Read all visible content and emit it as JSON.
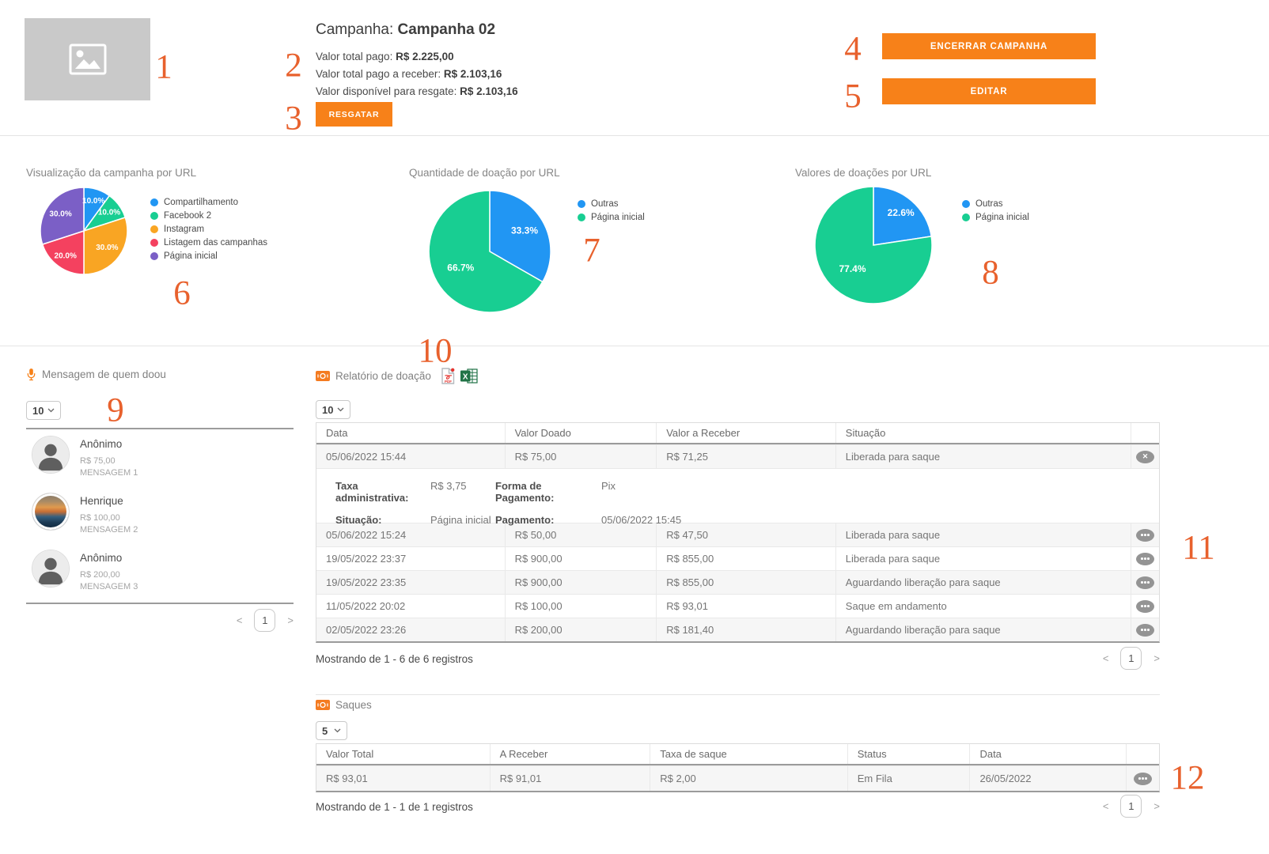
{
  "header": {
    "title_label": "Campanha:",
    "title_value": "Campanha 02",
    "info": [
      {
        "label": "Valor total pago: ",
        "value": "R$ 2.225,00"
      },
      {
        "label": "Valor total pago a receber: ",
        "value": "R$ 2.103,16"
      },
      {
        "label": "Valor disponível para resgate: ",
        "value": "R$ 2.103,16"
      }
    ],
    "buttons": {
      "resgatar": "RESGATAR",
      "encerrar": "ENCERRAR CAMPANHA",
      "editar": "EDITAR"
    }
  },
  "chart_data": [
    {
      "type": "pie",
      "title": "Visualização da campanha por URL",
      "labels": [
        "Compartilhamento",
        "Facebook 2",
        "Instagram",
        "Listagem das campanhas",
        "Página inicial"
      ],
      "values": [
        10,
        10,
        30,
        20,
        30
      ],
      "value_labels": [
        "10.0%",
        "10.0%",
        "30.0%",
        "20.0%",
        "30.0%"
      ],
      "colors": [
        "#2196F3",
        "#18CE92",
        "#F9A523",
        "#F4415F",
        "#7B5FC6"
      ],
      "legend_position": "right"
    },
    {
      "type": "pie",
      "title": "Quantidade de doação por URL",
      "labels": [
        "Outras",
        "Página inicial"
      ],
      "values": [
        33.3,
        66.7
      ],
      "value_labels": [
        "33.3%",
        "66.7%"
      ],
      "colors": [
        "#2196F3",
        "#18CE92"
      ],
      "legend_position": "right"
    },
    {
      "type": "pie",
      "title": "Valores de doações por URL",
      "labels": [
        "Outras",
        "Página inicial"
      ],
      "values": [
        22.6,
        77.4
      ],
      "value_labels": [
        "22.6%",
        "77.4%"
      ],
      "colors": [
        "#2196F3",
        "#18CE92"
      ],
      "legend_position": "right"
    }
  ],
  "messages": {
    "title": "Mensagem de quem doou",
    "page_size": "10",
    "items": [
      {
        "name": "Anônimo",
        "value": "R$ 75,00",
        "message": "MENSAGEM 1",
        "avatar": "anonymous"
      },
      {
        "name": "Henrique",
        "value": "R$ 100,00",
        "message": "MENSAGEM 2",
        "avatar": "photo"
      },
      {
        "name": "Anônimo",
        "value": "R$ 200,00",
        "message": "MENSAGEM 3",
        "avatar": "anonymous"
      }
    ],
    "pagination": {
      "prev": "<",
      "page": "1",
      "next": ">"
    }
  },
  "report": {
    "title": "Relatório de doação",
    "page_size": "10",
    "columns": [
      "Data",
      "Valor Doado",
      "Valor a Receber",
      "Situação"
    ],
    "rows": [
      {
        "cells": [
          "05/06/2022 15:44",
          "R$ 75,00",
          "R$ 71,25",
          "Liberada para saque"
        ],
        "action": "close",
        "expanded": true
      },
      {
        "cells": [
          "05/06/2022 15:24",
          "R$ 50,00",
          "R$ 47,50",
          "Liberada para saque"
        ],
        "action": "more"
      },
      {
        "cells": [
          "19/05/2022 23:37",
          "R$ 900,00",
          "R$ 855,00",
          "Liberada para saque"
        ],
        "action": "more"
      },
      {
        "cells": [
          "19/05/2022 23:35",
          "R$ 900,00",
          "R$ 855,00",
          "Aguardando liberação para saque"
        ],
        "action": "more"
      },
      {
        "cells": [
          "11/05/2022 20:02",
          "R$ 100,00",
          "R$ 93,01",
          "Saque em andamento"
        ],
        "action": "more"
      },
      {
        "cells": [
          "02/05/2022 23:26",
          "R$ 200,00",
          "R$ 181,40",
          "Aguardando liberação para saque"
        ],
        "action": "more"
      }
    ],
    "detail": {
      "taxa_label": "Taxa administrativa:",
      "taxa": "R$ 3,75",
      "forma_label": "Forma de Pagamento:",
      "forma": "Pix",
      "situacao_label": "Situação:",
      "situacao": "Página inicial",
      "pagamento_label": "Pagamento:",
      "pagamento": "05/06/2022 15:45"
    },
    "footer": "Mostrando de 1 - 6 de 6 registros",
    "pagination": {
      "prev": "<",
      "page": "1",
      "next": ">"
    }
  },
  "saques": {
    "title": "Saques",
    "page_size": "5",
    "columns": [
      "Valor Total",
      "A Receber",
      "Taxa de saque",
      "Status",
      "Data"
    ],
    "rows": [
      {
        "cells": [
          "R$ 93,01",
          "R$ 91,01",
          "R$ 2,00",
          "Em Fila",
          "26/05/2022"
        ],
        "action": "more"
      }
    ],
    "footer": "Mostrando de 1 - 1 de 1 registros",
    "pagination": {
      "prev": "<",
      "page": "1",
      "next": ">"
    }
  },
  "annotations": [
    "1",
    "2",
    "3",
    "4",
    "5",
    "6",
    "7",
    "8",
    "9",
    "10",
    "11",
    "12"
  ],
  "icons": {
    "messages_title": "microphone-icon",
    "report_title": "money-icon",
    "saques_title": "money-icon",
    "export_pdf": "pdf-export-icon",
    "export_excel": "excel-export-icon",
    "placeholder": "image-placeholder-icon"
  },
  "colors": {
    "accent_orange": "#F78119",
    "annotation_orange": "#E8612D",
    "pie_blue": "#2196F3",
    "pie_green": "#18CE92",
    "pie_amber": "#F9A523",
    "pie_red": "#F4415F",
    "pie_purple": "#7B5FC6"
  }
}
